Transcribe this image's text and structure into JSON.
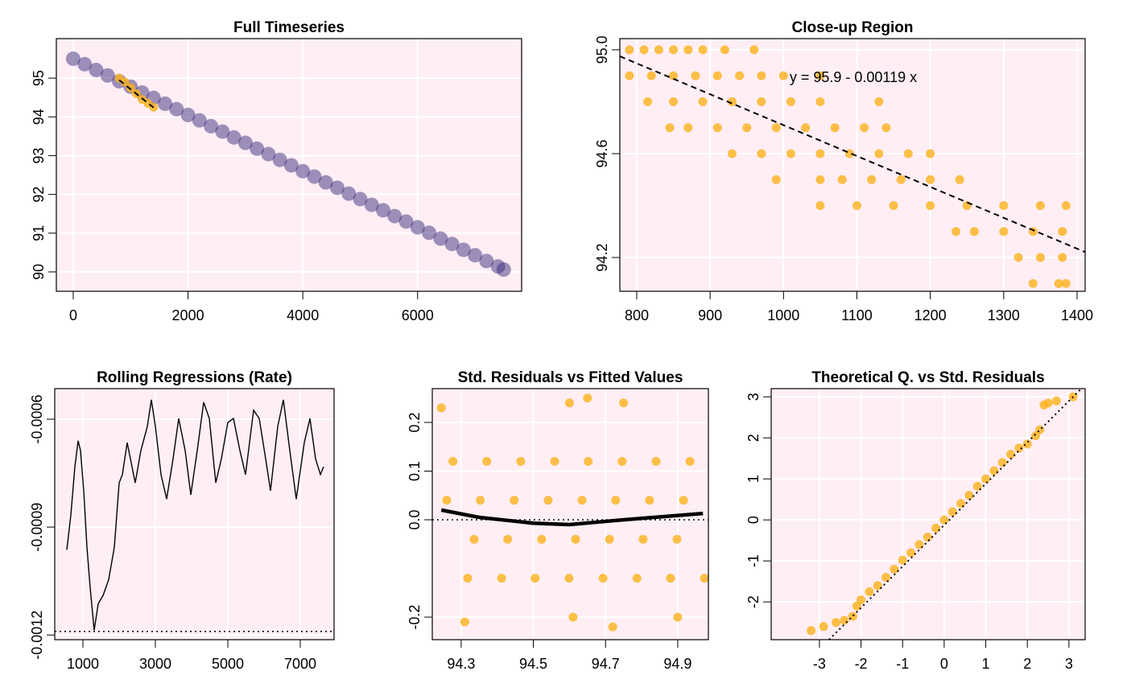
{
  "chart_data": [
    {
      "type": "scatter",
      "title": "Full Timeseries",
      "xlim": [
        -294,
        7812
      ],
      "ylim": [
        89.5,
        96.02
      ],
      "xticks": [
        0,
        2000,
        4000,
        6000
      ],
      "yticks": [
        90,
        91,
        92,
        93,
        94,
        95
      ],
      "grid": true,
      "series": [
        {
          "style": "points",
          "color": "#3b2d7d",
          "x": [
            0,
            200,
            400,
            600,
            800,
            1000,
            1200,
            1400,
            1600,
            1800,
            2000,
            2200,
            2400,
            2600,
            2800,
            3000,
            3200,
            3400,
            3600,
            3800,
            4000,
            4200,
            4400,
            4600,
            4800,
            5000,
            5200,
            5400,
            5600,
            5800,
            6000,
            6200,
            6400,
            6600,
            6800,
            7000,
            7200,
            7400,
            7500
          ],
          "values": [
            95.5,
            95.36,
            95.21,
            95.07,
            94.92,
            94.78,
            94.63,
            94.49,
            94.34,
            94.2,
            94.05,
            93.91,
            93.76,
            93.62,
            93.47,
            93.33,
            93.18,
            93.04,
            92.89,
            92.75,
            92.6,
            92.46,
            92.31,
            92.17,
            92.02,
            91.88,
            91.73,
            91.59,
            91.44,
            91.3,
            91.15,
            91.01,
            90.86,
            90.72,
            90.57,
            90.43,
            90.28,
            90.14,
            90.06
          ]
        },
        {
          "style": "points",
          "color": "#fbb21a",
          "x": [
            800,
            900,
            1000,
            1100,
            1200,
            1300,
            1400
          ],
          "values": [
            95.0,
            94.9,
            94.75,
            94.6,
            94.45,
            94.35,
            94.25
          ]
        },
        {
          "style": "dashed",
          "color": "#000000",
          "x": [
            800,
            1400
          ],
          "values": [
            94.95,
            94.24
          ]
        }
      ]
    },
    {
      "type": "scatter",
      "title": "Close-up Region",
      "annotation": "y = 95.9 - 0.00119 x",
      "xlim": [
        777,
        1411
      ],
      "ylim": [
        94.07,
        95.043
      ],
      "xticks": [
        800,
        900,
        1000,
        1100,
        1200,
        1300,
        1400
      ],
      "yticks": [
        94.2,
        94.6,
        {
          "value": 95,
          "label": "95.0"
        }
      ],
      "grid": true,
      "series": [
        {
          "style": "points",
          "color": "#fbb21a",
          "x": [
            790,
            810,
            830,
            850,
            870,
            890,
            920,
            960,
            790,
            820,
            850,
            880,
            910,
            940,
            970,
            1000,
            1050,
            815,
            850,
            890,
            930,
            970,
            1010,
            1050,
            1130,
            845,
            870,
            910,
            950,
            990,
            1030,
            1070,
            1110,
            1140,
            930,
            970,
            1010,
            1050,
            1090,
            1130,
            1170,
            1200,
            990,
            1050,
            1080,
            1120,
            1160,
            1200,
            1240,
            1050,
            1100,
            1150,
            1200,
            1250,
            1300,
            1350,
            1385,
            1235,
            1260,
            1300,
            1340,
            1380,
            1320,
            1350,
            1380,
            1340,
            1375,
            1385
          ],
          "values": [
            95,
            95,
            95,
            95,
            95,
            95,
            95,
            95,
            94.9,
            94.9,
            94.9,
            94.9,
            94.9,
            94.9,
            94.9,
            94.9,
            94.9,
            94.8,
            94.8,
            94.8,
            94.8,
            94.8,
            94.8,
            94.8,
            94.8,
            94.7,
            94.7,
            94.7,
            94.7,
            94.7,
            94.7,
            94.7,
            94.7,
            94.7,
            94.6,
            94.6,
            94.6,
            94.6,
            94.6,
            94.6,
            94.6,
            94.6,
            94.5,
            94.5,
            94.5,
            94.5,
            94.5,
            94.5,
            94.5,
            94.4,
            94.4,
            94.4,
            94.4,
            94.4,
            94.4,
            94.4,
            94.4,
            94.3,
            94.3,
            94.3,
            94.3,
            94.3,
            94.2,
            94.2,
            94.2,
            94.1,
            94.1,
            94.1
          ]
        },
        {
          "style": "dashed",
          "color": "#000000",
          "x": [
            777,
            1411
          ],
          "values": [
            94.975,
            94.221
          ]
        }
      ]
    },
    {
      "type": "line",
      "title": "Rolling Regressions (Rate)",
      "xlim": [
        222,
        7933
      ],
      "ylim": [
        -0.001213,
        -0.000515
      ],
      "xticks": [
        1000,
        3000,
        5000,
        7000
      ],
      "yticks": [
        {
          "value": -0.0006,
          "label": "-0.0006"
        },
        {
          "value": -0.0009,
          "label": "-0.0009"
        },
        {
          "value": -0.0012,
          "label": "-0.0012"
        }
      ],
      "grid": true,
      "hline": {
        "value": -0.00119,
        "style": "dotted"
      },
      "series": [
        {
          "style": "solid",
          "color": "#000000",
          "x": [
            556,
            667,
            778,
            867,
            933,
            1022,
            1111,
            1200,
            1311,
            1422,
            1556,
            1711,
            1867,
            2000,
            2089,
            2222,
            2333,
            2444,
            2600,
            2778,
            2889,
            3000,
            3156,
            3311,
            3489,
            3644,
            3822,
            3978,
            4156,
            4333,
            4489,
            4667,
            4822,
            5000,
            5156,
            5333,
            5489,
            5711,
            5867,
            6044,
            6178,
            6378,
            6533,
            6711,
            6889,
            7111,
            7267,
            7422,
            7556,
            7644
          ],
          "values": [
            -0.000963,
            -0.000866,
            -0.000732,
            -0.00066,
            -0.000687,
            -0.000799,
            -0.000956,
            -0.001068,
            -0.001187,
            -0.001113,
            -0.00109,
            -0.001046,
            -0.000956,
            -0.000777,
            -0.000754,
            -0.000665,
            -0.000721,
            -0.000777,
            -0.000687,
            -0.00062,
            -0.000546,
            -0.00062,
            -0.000754,
            -0.000822,
            -0.00071,
            -0.000598,
            -0.000687,
            -0.00081,
            -0.000687,
            -0.000553,
            -0.000598,
            -0.000777,
            -0.00071,
            -0.000609,
            -0.000598,
            -0.000687,
            -0.000754,
            -0.000575,
            -0.000598,
            -0.00071,
            -0.000799,
            -0.00062,
            -0.000546,
            -0.000687,
            -0.000822,
            -0.000665,
            -0.000598,
            -0.00071,
            -0.000754,
            -0.000732
          ]
        }
      ]
    },
    {
      "type": "scatter",
      "title": "Std. Residuals vs Fitted Values",
      "xlim": [
        94.22,
        94.985
      ],
      "ylim": [
        -0.2463,
        0.2694
      ],
      "xticks": [
        94.3,
        94.5,
        94.7,
        94.9
      ],
      "yticks": [
        -0.2,
        {
          "value": 0,
          "label": "0.0"
        },
        0.1,
        0.2
      ],
      "grid": true,
      "hline": {
        "value": 0,
        "style": "dotted"
      },
      "series": [
        {
          "style": "points",
          "color": "#fbb21a",
          "x": [
            94.277,
            94.371,
            94.465,
            94.559,
            94.652,
            94.746,
            94.84,
            94.934,
            94.26,
            94.353,
            94.447,
            94.541,
            94.635,
            94.728,
            94.822,
            94.916,
            94.336,
            94.429,
            94.523,
            94.617,
            94.711,
            94.804,
            94.898,
            94.318,
            94.412,
            94.505,
            94.599,
            94.693,
            94.787,
            94.88,
            94.974,
            94.245,
            94.31,
            94.6,
            94.65,
            94.75,
            94.61,
            94.72,
            94.9
          ],
          "values": [
            0.12,
            0.12,
            0.12,
            0.12,
            0.12,
            0.12,
            0.12,
            0.12,
            0.04,
            0.04,
            0.04,
            0.04,
            0.04,
            0.04,
            0.04,
            0.04,
            -0.04,
            -0.04,
            -0.04,
            -0.04,
            -0.04,
            -0.04,
            -0.04,
            -0.12,
            -0.12,
            -0.12,
            -0.12,
            -0.12,
            -0.12,
            -0.12,
            -0.12,
            0.23,
            -0.21,
            0.24,
            0.25,
            0.24,
            -0.2,
            -0.22,
            -0.2
          ]
        },
        {
          "style": "thick",
          "color": "#000000",
          "x": [
            94.245,
            94.35,
            94.5,
            94.6,
            94.75,
            94.97
          ],
          "values": [
            0.02,
            0.005,
            -0.007,
            -0.01,
            0.0,
            0.013
          ]
        }
      ]
    },
    {
      "type": "scatter",
      "title": "Theoretical Q. vs Std. Residuals",
      "xlim": [
        -4.16,
        3.39
      ],
      "ylim": [
        -2.92,
        3.2
      ],
      "xticks": [
        -3,
        -2,
        -1,
        0,
        1,
        2,
        3
      ],
      "yticks": [
        -2,
        -1,
        0,
        1,
        2,
        3
      ],
      "grid": true,
      "series": [
        {
          "style": "points",
          "color": "#fbb21a",
          "x": [
            -3.2,
            -2.9,
            -2.6,
            -2.4,
            -2.2,
            -2.1,
            -2.0,
            -1.8,
            -1.6,
            -1.4,
            -1.2,
            -1.0,
            -0.8,
            -0.6,
            -0.4,
            -0.2,
            0,
            0.2,
            0.4,
            0.6,
            0.8,
            1.0,
            1.2,
            1.4,
            1.6,
            1.8,
            2.0,
            2.2,
            2.3,
            2.4,
            2.5,
            2.7,
            3.1
          ],
          "values": [
            -2.7,
            -2.6,
            -2.5,
            -2.45,
            -2.35,
            -2.1,
            -1.95,
            -1.75,
            -1.6,
            -1.4,
            -1.2,
            -0.98,
            -0.8,
            -0.6,
            -0.42,
            -0.2,
            0,
            0.2,
            0.4,
            0.6,
            0.82,
            1.0,
            1.2,
            1.4,
            1.6,
            1.75,
            1.85,
            2.05,
            2.2,
            2.8,
            2.85,
            2.9,
            3.0
          ]
        },
        {
          "style": "dotted",
          "color": "#000000",
          "x": [
            -2.77,
            3.3
          ],
          "values": [
            -2.92,
            3.2
          ]
        }
      ]
    }
  ]
}
